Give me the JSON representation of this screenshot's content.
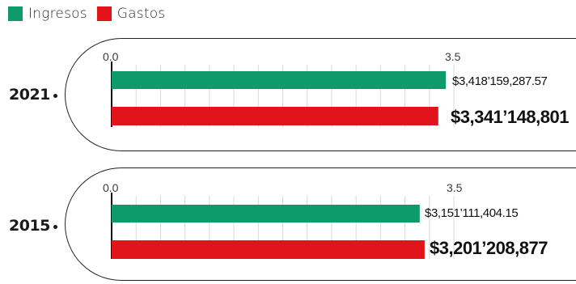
{
  "colors": {
    "ingresos": "#0e9a6a",
    "gastos": "#e3131b"
  },
  "legend": [
    {
      "label": "Ingresos",
      "color": "#0e9a6a"
    },
    {
      "label": "Gastos",
      "color": "#e3131b"
    }
  ],
  "chart_data": {
    "type": "bar",
    "orientation": "horizontal",
    "grid": true,
    "legend_position": "top-left",
    "xlim": [
      0,
      3.5
    ],
    "ticks": [
      "0.0",
      "3.5"
    ],
    "groups": [
      {
        "year": "2021",
        "bars": [
          {
            "series": "Ingresos",
            "value": 3.418159,
            "label": "$3,418’159,287.57"
          },
          {
            "series": "Gastos",
            "value": 3.341149,
            "label": "$3,341’148,801"
          }
        ]
      },
      {
        "year": "2015",
        "bars": [
          {
            "series": "Ingresos",
            "value": 3.151111,
            "label": "$3,151’111,404.15"
          },
          {
            "series": "Gastos",
            "value": 3.201209,
            "label": "$3,201’208,877"
          }
        ]
      }
    ]
  }
}
